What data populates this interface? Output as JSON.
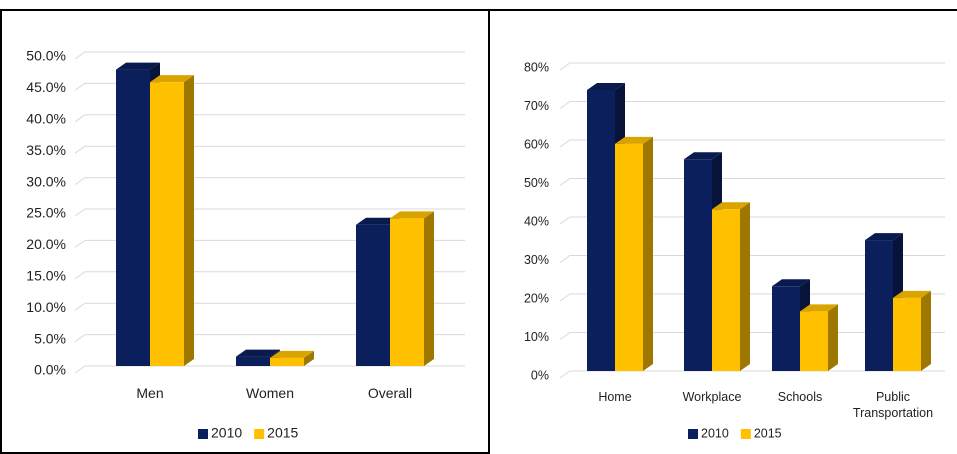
{
  "chart_data": [
    {
      "type": "bar3d",
      "categories": [
        "Men",
        "Women",
        "Overall"
      ],
      "series": [
        {
          "name": "2010",
          "color": "#0b1f5c",
          "values": [
            47.2,
            1.5,
            22.5
          ]
        },
        {
          "name": "2015",
          "color": "#ffc000",
          "values": [
            45.2,
            1.3,
            23.5
          ]
        }
      ],
      "ylim": [
        0,
        50
      ],
      "yticks": [
        {
          "value": 0,
          "label": "0.0%"
        },
        {
          "value": 5,
          "label": "5.0%"
        },
        {
          "value": 10,
          "label": "10.0%"
        },
        {
          "value": 15,
          "label": "15.0%"
        },
        {
          "value": 20,
          "label": "20.0%"
        },
        {
          "value": 25,
          "label": "25.0%"
        },
        {
          "value": 30,
          "label": "30.0%"
        },
        {
          "value": 35,
          "label": "35.0%"
        },
        {
          "value": 40,
          "label": "40.0%"
        },
        {
          "value": 45,
          "label": "45.0%"
        },
        {
          "value": 50,
          "label": "50.0%"
        }
      ],
      "grid": true,
      "legend": "bottom"
    },
    {
      "type": "bar3d",
      "categories": [
        "Home",
        "Workplace",
        "Schools",
        "Public Transportation"
      ],
      "series": [
        {
          "name": "2010",
          "color": "#0b1f5c",
          "values": [
            73,
            55,
            22,
            34
          ]
        },
        {
          "name": "2015",
          "color": "#ffc000",
          "values": [
            59,
            42,
            15.5,
            19
          ]
        }
      ],
      "ylim": [
        0,
        80
      ],
      "yticks": [
        {
          "value": 0,
          "label": "0%"
        },
        {
          "value": 10,
          "label": "10%"
        },
        {
          "value": 20,
          "label": "20%"
        },
        {
          "value": 30,
          "label": "30%"
        },
        {
          "value": 40,
          "label": "40%"
        },
        {
          "value": 50,
          "label": "50%"
        },
        {
          "value": 60,
          "label": "60%"
        },
        {
          "value": 70,
          "label": "70%"
        },
        {
          "value": 80,
          "label": "80%"
        }
      ],
      "grid": true,
      "legend": "bottom"
    }
  ]
}
